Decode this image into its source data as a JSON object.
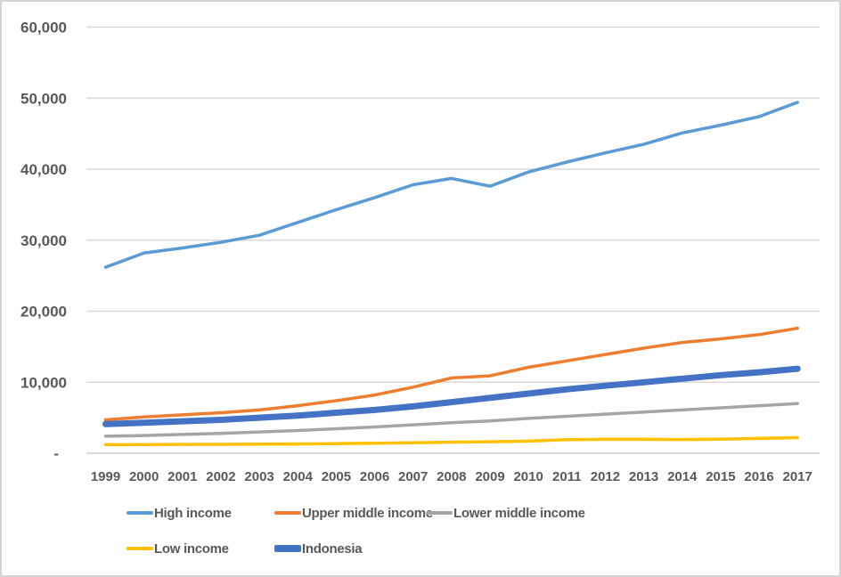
{
  "styles": {
    "background": "#FFFFFF",
    "frame_border_color": "#D3D3D3",
    "gridline_color": "#D9D9D9",
    "axis_line_color": "#D9D9D9",
    "tick_text_color": "#595959",
    "legend_text_color": "#595959"
  },
  "chart_data": {
    "type": "line",
    "title": "",
    "xlabel": "",
    "ylabel": "",
    "grid": true,
    "legend_position": "bottom",
    "ylim": [
      0,
      60000
    ],
    "x": [
      "1999",
      "2000",
      "2001",
      "2002",
      "2003",
      "2004",
      "2005",
      "2006",
      "2007",
      "2008",
      "2009",
      "2010",
      "2011",
      "2012",
      "2013",
      "2014",
      "2015",
      "2016",
      "2017"
    ],
    "yticks": [
      {
        "value": 0,
        "label": "-"
      },
      {
        "value": 10000,
        "label": "10,000"
      },
      {
        "value": 20000,
        "label": "20,000"
      },
      {
        "value": 30000,
        "label": "30,000"
      },
      {
        "value": 40000,
        "label": "40,000"
      },
      {
        "value": 50000,
        "label": "50,000"
      },
      {
        "value": 60000,
        "label": "60,000"
      }
    ],
    "series": [
      {
        "name": "High income",
        "color": "#5B9BD5",
        "line_width": 3.5,
        "legend_swatch_thickness": 4,
        "values": [
          26200,
          28200,
          28900,
          29700,
          30700,
          32500,
          34300,
          36000,
          37800,
          38700,
          37600,
          39600,
          41000,
          42300,
          43500,
          45100,
          46200,
          47400,
          49400
        ]
      },
      {
        "name": "Upper middle income",
        "color": "#ED7D31",
        "line_width": 3.5,
        "legend_swatch_thickness": 4,
        "values": [
          4700,
          5100,
          5400,
          5700,
          6100,
          6700,
          7400,
          8200,
          9300,
          10600,
          10900,
          12100,
          13000,
          13900,
          14800,
          15600,
          16100,
          16700,
          17600
        ]
      },
      {
        "name": "Lower middle income",
        "color": "#A5A5A5",
        "line_width": 3.5,
        "legend_swatch_thickness": 4,
        "values": [
          2400,
          2500,
          2650,
          2800,
          3000,
          3200,
          3450,
          3700,
          4000,
          4300,
          4550,
          4900,
          5200,
          5500,
          5800,
          6100,
          6400,
          6700,
          7000
        ]
      },
      {
        "name": "Low income",
        "color": "#FFC000",
        "line_width": 3.5,
        "legend_swatch_thickness": 4,
        "values": [
          1200,
          1220,
          1240,
          1260,
          1280,
          1310,
          1350,
          1400,
          1470,
          1550,
          1620,
          1700,
          1900,
          1950,
          1950,
          1930,
          1980,
          2080,
          2200
        ]
      },
      {
        "name": "Indonesia",
        "color": "#4472C4",
        "line_width": 7,
        "legend_swatch_thickness": 8,
        "values": [
          4100,
          4300,
          4500,
          4700,
          5000,
          5300,
          5700,
          6100,
          6600,
          7200,
          7800,
          8400,
          9000,
          9500,
          10000,
          10500,
          11000,
          11400,
          11900
        ]
      }
    ]
  }
}
